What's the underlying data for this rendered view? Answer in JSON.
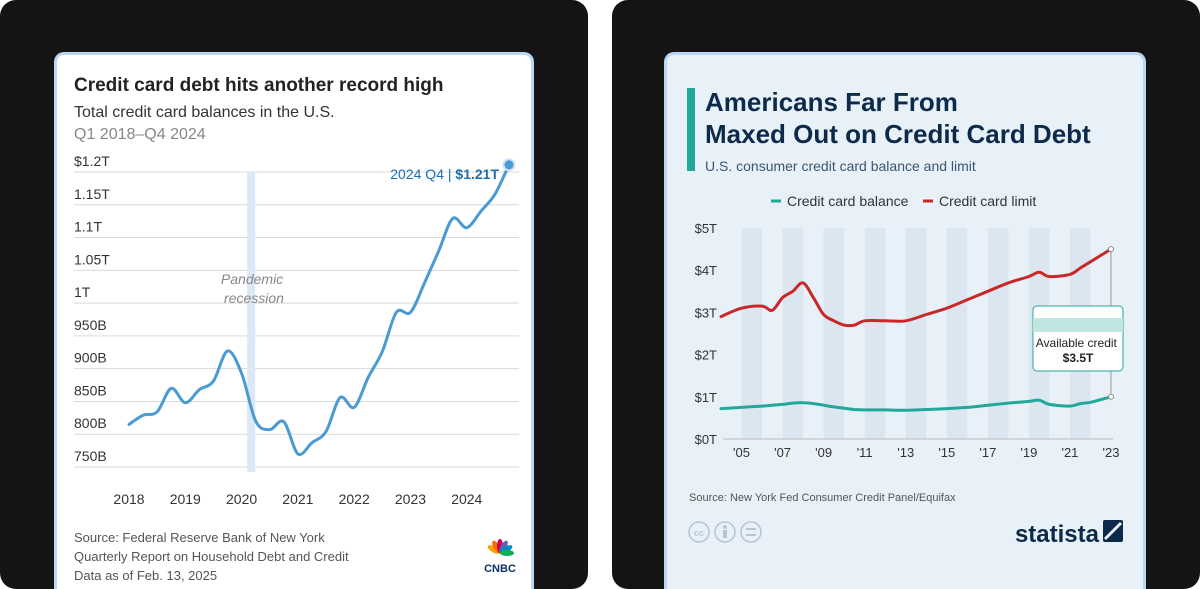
{
  "left_card": {
    "title": "Credit card debt hits another record high",
    "subtitle": "Total credit card balances in the U.S.",
    "period": "Q1 2018–Q4 2024",
    "annotation": "Pandemic recession",
    "callout_label": "2024 Q4 | ",
    "callout_value": "$1.21T",
    "source_lines": [
      "Source: Federal Reserve Bank of New York",
      "Quarterly Report on Household Debt and Credit",
      "Data as of Feb. 13, 2025"
    ],
    "logo_text": "CNBC",
    "colors": {
      "line": "#4a9bd4",
      "recession": "#dbe9f6",
      "grid": "#d8d8d8",
      "text": "#222222",
      "muted": "#888888",
      "callout": "#1f6fae"
    }
  },
  "right_card": {
    "title_lines": [
      "Americans Far From",
      "Maxed Out on Credit Card Debt"
    ],
    "subtitle": "U.S. consumer credit card balance and limit",
    "legend": [
      "Credit card balance",
      "Credit card limit"
    ],
    "annotation_lines": [
      "Available credit",
      "$3.5T"
    ],
    "source": "Source: New York Fed Consumer Credit Panel/Equifax",
    "brand": "statista",
    "license_icons": [
      "cc-icon",
      "person-icon",
      "equals-icon"
    ],
    "colors": {
      "balance": "#21a89a",
      "limit": "#c8282a",
      "band": "#dde6f0",
      "accent": "#21a89a",
      "title": "#0d2a4a"
    }
  },
  "chart_data": [
    {
      "type": "line",
      "title": "Credit card debt hits another record high",
      "subtitle": "Total credit card balances in the U.S.",
      "xlabel": "",
      "ylabel": "",
      "x": [
        2018.0,
        2018.25,
        2018.5,
        2018.75,
        2019.0,
        2019.25,
        2019.5,
        2019.75,
        2020.0,
        2020.25,
        2020.5,
        2020.75,
        2021.0,
        2021.25,
        2021.5,
        2021.75,
        2022.0,
        2022.25,
        2022.5,
        2022.75,
        2023.0,
        2023.25,
        2023.5,
        2023.75,
        2024.0,
        2024.25,
        2024.5,
        2024.75
      ],
      "values": [
        815,
        829,
        834,
        870,
        848,
        868,
        881,
        927,
        893,
        820,
        807,
        819,
        770,
        787,
        804,
        856,
        841,
        887,
        926,
        986,
        986,
        1031,
        1079,
        1129,
        1115,
        1140,
        1166,
        1211
      ],
      "xticks": [
        "2018",
        "2019",
        "2020",
        "2021",
        "2022",
        "2023",
        "2024"
      ],
      "yticks": [
        "$1.2T",
        "1.15T",
        "1.1T",
        "1.05T",
        "1T",
        "950B",
        "900B",
        "850B",
        "800B",
        "750B"
      ],
      "ytick_values": [
        1200,
        1150,
        1100,
        1050,
        1000,
        950,
        900,
        850,
        800,
        750
      ],
      "ylim": [
        750,
        1200
      ],
      "xlim": [
        2018,
        2024.75
      ],
      "recession_x": 2020.17,
      "grid": true,
      "units": "billions USD"
    },
    {
      "type": "line",
      "title": "Americans Far From Maxed Out on Credit Card Debt",
      "subtitle": "U.S. consumer credit card balance and limit",
      "x": [
        2004.0,
        2005.0,
        2006.0,
        2006.5,
        2007.0,
        2007.5,
        2008.0,
        2008.5,
        2009.0,
        2009.5,
        2010.0,
        2010.5,
        2011.0,
        2012.0,
        2013.0,
        2014.0,
        2015.0,
        2016.0,
        2017.0,
        2018.0,
        2019.0,
        2019.5,
        2020.0,
        2021.0,
        2021.5,
        2022.0,
        2023.0
      ],
      "series": [
        {
          "name": "Credit card limit",
          "values": [
            2.9,
            3.1,
            3.15,
            3.05,
            3.35,
            3.5,
            3.7,
            3.35,
            2.95,
            2.8,
            2.7,
            2.7,
            2.8,
            2.8,
            2.8,
            2.95,
            3.1,
            3.3,
            3.5,
            3.7,
            3.85,
            3.95,
            3.85,
            3.9,
            4.05,
            4.2,
            4.5
          ]
        },
        {
          "name": "Credit card balance",
          "values": [
            0.72,
            0.75,
            0.78,
            0.8,
            0.82,
            0.85,
            0.86,
            0.84,
            0.8,
            0.76,
            0.73,
            0.7,
            0.69,
            0.69,
            0.68,
            0.7,
            0.72,
            0.75,
            0.8,
            0.85,
            0.89,
            0.92,
            0.82,
            0.78,
            0.84,
            0.87,
            1.0
          ]
        }
      ],
      "xticks": [
        "'05",
        "'07",
        "'09",
        "'11",
        "'13",
        "'15",
        "'17",
        "'19",
        "'21",
        "'23"
      ],
      "yticks": [
        "$5T",
        "$4T",
        "$3T",
        "$2T",
        "$1T",
        "$0T"
      ],
      "ytick_values": [
        5,
        4,
        3,
        2,
        1,
        0
      ],
      "ylim": [
        0,
        5
      ],
      "xlim": [
        2004,
        2023
      ],
      "grid": false,
      "legend_position": "top",
      "units": "trillions USD"
    }
  ]
}
